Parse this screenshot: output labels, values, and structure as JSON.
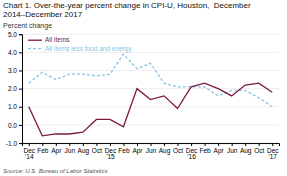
{
  "chart_data": {
    "type": "line",
    "title": "Chart 1. Over-the-year percent change in CPI-U, Houston,  December 2014–December 2017",
    "ylabel": "Percent change",
    "source": "Source: U.S. Bureau of Labor Statistics",
    "categories": [
      "Dec\n'14",
      "Feb",
      "Apr",
      "Jun",
      "Aug",
      "Oct",
      "Dec\n'15",
      "Feb",
      "Apr",
      "Jun",
      "Aug",
      "Oct",
      "Dec\n'16",
      "Feb",
      "Apr",
      "Jun",
      "Aug",
      "Oct",
      "Dec\n'17"
    ],
    "series": [
      {
        "name": "All items",
        "color": "#7b1a3b",
        "line_style": "solid",
        "values": [
          1.0,
          -0.6,
          -0.5,
          -0.5,
          -0.4,
          0.3,
          0.3,
          -0.1,
          2.0,
          1.4,
          1.6,
          0.9,
          2.1,
          2.3,
          2.0,
          1.6,
          2.2,
          2.3,
          1.8
        ]
      },
      {
        "name": "All items less food and energy",
        "color": "#89c4e0",
        "line_style": "dashed",
        "values": [
          2.3,
          2.9,
          2.5,
          2.8,
          2.8,
          2.7,
          2.8,
          3.9,
          3.1,
          3.4,
          2.3,
          2.1,
          2.1,
          2.1,
          1.6,
          1.9,
          1.9,
          1.5,
          1.0
        ]
      }
    ],
    "ylim": [
      -1.0,
      5.0
    ],
    "yticks": [
      {
        "value": -1.0,
        "label": "-1.0"
      },
      {
        "value": 0.0,
        "label": "0.0"
      },
      {
        "value": 1.0,
        "label": "1.0"
      },
      {
        "value": 2.0,
        "label": "2.0"
      },
      {
        "value": 3.0,
        "label": "3.0"
      },
      {
        "value": 4.0,
        "label": "4.0"
      },
      {
        "value": 5.0,
        "label": "5.0"
      }
    ],
    "grid": true,
    "legend": "upper left"
  }
}
